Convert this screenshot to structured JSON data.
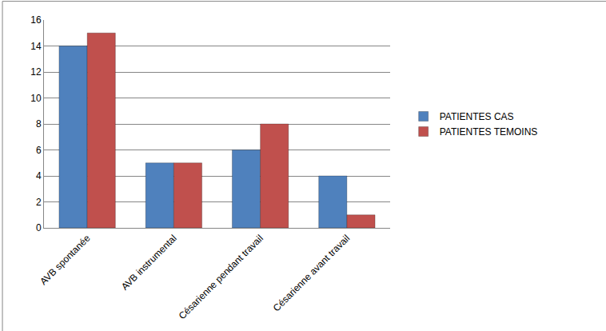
{
  "chart_data": {
    "type": "bar",
    "categories": [
      "AVB spontanée",
      "AVB instrumental",
      "Césarienne pendant travail",
      "Césarienne avant travail"
    ],
    "series": [
      {
        "name": "PATIENTES CAS",
        "color": "#4f81bd",
        "values": [
          14,
          5,
          6,
          4
        ]
      },
      {
        "name": "PATIENTES TEMOINS",
        "color": "#c0504d",
        "values": [
          15,
          5,
          8,
          1
        ]
      }
    ],
    "ylim": [
      0,
      16
    ],
    "yticks": [
      0,
      2,
      4,
      6,
      8,
      10,
      12,
      14,
      16
    ],
    "grid": true,
    "legend": "right"
  }
}
